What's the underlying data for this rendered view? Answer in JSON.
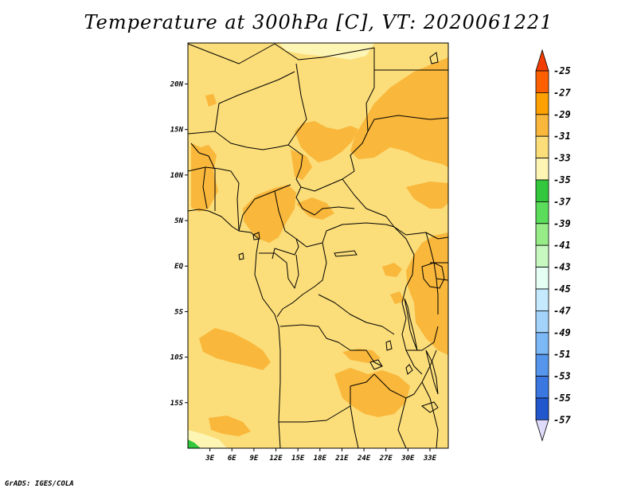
{
  "title": "Temperature at 300hPa [C], VT: 2020061221",
  "credit": "GrADS: IGES/COLA",
  "map": {
    "lon_range": [
      0,
      35.5
    ],
    "lat_range": [
      -20,
      24.5
    ],
    "lon_ticks": [
      "3E",
      "6E",
      "9E",
      "12E",
      "15E",
      "18E",
      "21E",
      "24E",
      "27E",
      "30E",
      "33E"
    ],
    "lat_ticks": [
      "20N",
      "15N",
      "10N",
      "5N",
      "EQ",
      "5S",
      "10S",
      "15S"
    ],
    "background_color": "#fbdd79"
  },
  "colorbar": {
    "labels": [
      "-25",
      "-27",
      "-29",
      "-31",
      "-33",
      "-35",
      "-37",
      "-39",
      "-41",
      "-43",
      "-45",
      "-47",
      "-49",
      "-51",
      "-53",
      "-55",
      "-57"
    ],
    "colors": [
      "#fe6001",
      "#fea000",
      "#f9b73b",
      "#fbdd79",
      "#fdf5b4",
      "#33c73d",
      "#5bdd5b",
      "#97ec88",
      "#c7f8c0",
      "#e5fff5",
      "#c5e9fe",
      "#a3d3fb",
      "#7bb8f5",
      "#5596ec",
      "#3b77e0",
      "#2256cc",
      "#0f1b83"
    ],
    "top_arrow_color": "#f23d03",
    "bottom_arrow_color": "#dedcfa"
  }
}
